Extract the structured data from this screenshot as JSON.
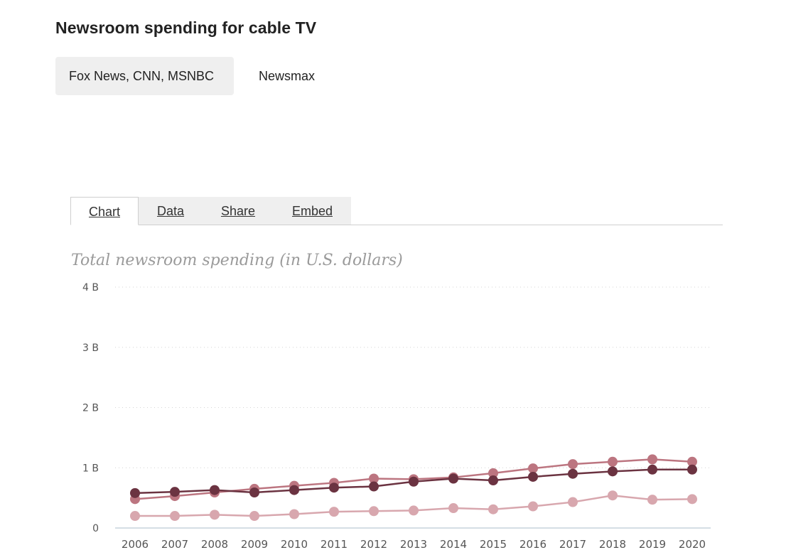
{
  "header": {
    "title": "Newsroom spending for cable TV"
  },
  "toggles": [
    {
      "label": "Fox News, CNN, MSNBC",
      "active": true
    },
    {
      "label": "Newsmax",
      "active": false
    }
  ],
  "tabs": [
    {
      "label": "Chart",
      "active": true
    },
    {
      "label": "Data",
      "active": false
    },
    {
      "label": "Share",
      "active": false
    },
    {
      "label": "Embed",
      "active": false
    }
  ],
  "chart_data": {
    "type": "line",
    "title": "Total newsroom spending (in U.S. dollars)",
    "xlabel": "",
    "ylabel": "",
    "x": [
      2006,
      2007,
      2008,
      2009,
      2010,
      2011,
      2012,
      2013,
      2014,
      2015,
      2016,
      2017,
      2018,
      2019,
      2020
    ],
    "ylim": [
      0,
      4
    ],
    "yticks": [
      {
        "value": 0,
        "label": "0"
      },
      {
        "value": 1,
        "label": "1 B"
      },
      {
        "value": 2,
        "label": "2 B"
      },
      {
        "value": 3,
        "label": "3 B"
      },
      {
        "value": 4,
        "label": "4 B"
      }
    ],
    "grid": "horizontal dotted",
    "legend": "none",
    "series": [
      {
        "color": "#6b3341",
        "values": [
          0.58,
          0.6,
          0.63,
          0.59,
          0.63,
          0.67,
          0.69,
          0.77,
          0.82,
          0.79,
          0.85,
          0.9,
          0.94,
          0.97,
          0.97
        ]
      },
      {
        "color": "#bc7580",
        "values": [
          0.48,
          0.53,
          0.59,
          0.65,
          0.7,
          0.75,
          0.82,
          0.81,
          0.84,
          0.91,
          0.99,
          1.06,
          1.1,
          1.14,
          1.1
        ]
      },
      {
        "color": "#d8a7ae",
        "values": [
          0.2,
          0.2,
          0.22,
          0.2,
          0.23,
          0.27,
          0.28,
          0.29,
          0.33,
          0.31,
          0.36,
          0.43,
          0.54,
          0.47,
          0.48
        ]
      }
    ]
  }
}
